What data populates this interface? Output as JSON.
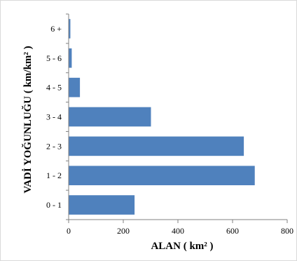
{
  "chart_data": {
    "type": "bar",
    "orientation": "horizontal",
    "categories": [
      "0 - 1",
      "1 - 2",
      "2 - 3",
      "3 - 4",
      "4 - 5",
      "5 - 6",
      "6 +"
    ],
    "values": [
      240,
      680,
      640,
      300,
      40,
      10,
      5
    ],
    "xlabel": "ALAN ( km² )",
    "ylabel": "VADİ YOĞUNLUĞU ( km/km² )",
    "xlim": [
      0,
      800
    ],
    "xticks": [
      "0",
      "200",
      "400",
      "600",
      "800"
    ],
    "grid": false,
    "legend": "none",
    "colors": {
      "bar": "#4f81bd",
      "axis": "#808080"
    }
  }
}
